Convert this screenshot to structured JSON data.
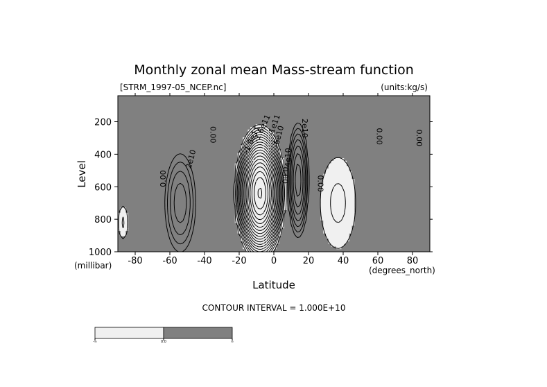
{
  "chart_data": {
    "type": "contour",
    "title": "Monthly zonal mean Mass-stream function",
    "source_label": "[STRM_1997-05_NCEP.nc]",
    "units_label": "(units:kg/s)",
    "xlabel": "Latitude",
    "x_unit_label": "(degrees_north)",
    "ylabel": "Level",
    "y_unit_label": "(millibar)",
    "xlim": [
      -90,
      90
    ],
    "ylim": [
      1000,
      40
    ],
    "x_ticks": [
      {
        "value": -80,
        "label": "-80"
      },
      {
        "value": -60,
        "label": "-60"
      },
      {
        "value": -40,
        "label": "-40"
      },
      {
        "value": -20,
        "label": "-20"
      },
      {
        "value": 0,
        "label": "0"
      },
      {
        "value": 20,
        "label": "20"
      },
      {
        "value": 40,
        "label": "40"
      },
      {
        "value": 60,
        "label": "60"
      },
      {
        "value": 80,
        "label": "80"
      }
    ],
    "y_ticks": [
      {
        "value": 200,
        "label": "200"
      },
      {
        "value": 400,
        "label": "400"
      },
      {
        "value": 600,
        "label": "600"
      },
      {
        "value": 800,
        "label": "800"
      },
      {
        "value": 1000,
        "label": "1000"
      }
    ],
    "contour_interval_label": "CONTOUR INTERVAL = 1.000E+10",
    "contour_interval": 10000000000.0,
    "fill_colors": {
      "positive": "#808080",
      "negative": "#f0f0f0"
    },
    "line_styles": {
      "positive": "solid",
      "negative": "dashed"
    },
    "cells": [
      {
        "name": "sh-polar",
        "center": [
          -87,
          820
        ],
        "halfwidth": [
          3,
          120
        ],
        "amplitude": -1.5
      },
      {
        "name": "sh-ferrel",
        "center": [
          -54,
          700
        ],
        "halfwidth": [
          10,
          340
        ],
        "amplitude": 4.3
      },
      {
        "name": "sh-hadley",
        "center": [
          -8,
          640
        ],
        "halfwidth": [
          15,
          430
        ],
        "amplitude": -18.5
      },
      {
        "name": "nh-hadley",
        "center": [
          14,
          560
        ],
        "halfwidth": [
          6.5,
          380
        ],
        "amplitude": 7.3
      },
      {
        "name": "nh-ferrel",
        "center": [
          37,
          700
        ],
        "halfwidth": [
          12,
          330
        ],
        "amplitude": -1.6
      }
    ],
    "contour_labels": [
      {
        "text": "0.00",
        "lat": -64,
        "level": 550,
        "rotate": -90
      },
      {
        "text": "2e10",
        "lat": -48,
        "level": 430,
        "rotate": -75
      },
      {
        "text": "0.00",
        "lat": -35,
        "level": 280,
        "rotate": 90
      },
      {
        "text": "-1.8e11",
        "lat": -13,
        "level": 310,
        "rotate": -65
      },
      {
        "text": "-1.6e11",
        "lat": -7,
        "level": 240,
        "rotate": -65
      },
      {
        "text": "-1e11",
        "lat": 0,
        "level": 220,
        "rotate": -70
      },
      {
        "text": "-6e10",
        "lat": 2.5,
        "level": 290,
        "rotate": -75
      },
      {
        "text": "4e10",
        "lat": 8,
        "level": 420,
        "rotate": -90
      },
      {
        "text": "0.00",
        "lat": 6.5,
        "level": 530,
        "rotate": 90
      },
      {
        "text": "2e10",
        "lat": 18,
        "level": 240,
        "rotate": 90
      },
      {
        "text": "0.00",
        "lat": 27,
        "level": 580,
        "rotate": 90
      },
      {
        "text": "0.00",
        "lat": 61,
        "level": 290,
        "rotate": 90
      },
      {
        "text": "0.00",
        "lat": 84,
        "level": 300,
        "rotate": 90
      }
    ],
    "colorbar": {
      "labels": [
        "-∞",
        "0.0",
        "∞"
      ],
      "colors": [
        "#f0f0f0",
        "#808080"
      ]
    }
  }
}
